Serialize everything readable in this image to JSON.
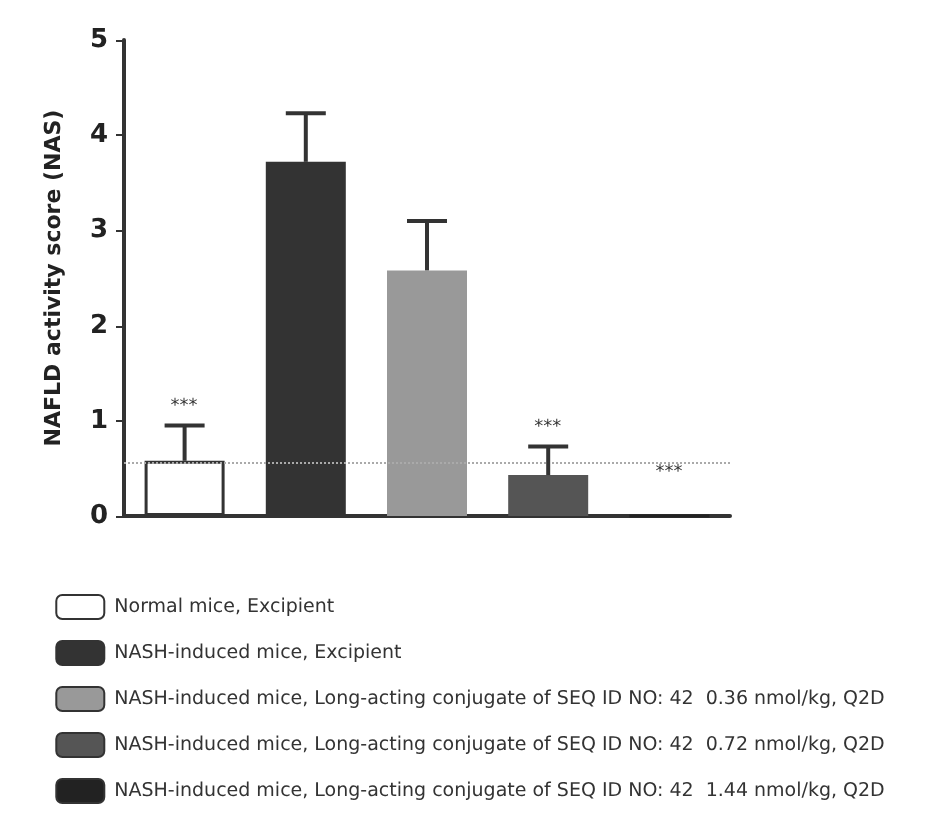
{
  "chart_data": {
    "type": "bar",
    "ylabel": "NAFLD activity score (NAS)",
    "categories": [
      null,
      null,
      null,
      null,
      null
    ],
    "series": [
      {
        "name": "Normal mice, Excipient",
        "color": "#ffffff",
        "values": [
          0.58,
          null,
          null,
          null,
          null
        ],
        "errors": [
          [
            0.58,
            0.95
          ],
          null,
          null,
          null,
          null
        ]
      },
      {
        "name": "NASH-induced mice, Excipient",
        "color": "#333333",
        "values": [
          null,
          3.72,
          null,
          null,
          null
        ],
        "errors": [
          null,
          [
            3.72,
            4.23
          ],
          null,
          null,
          null
        ]
      },
      {
        "name": "NASH-induced mice, Long-acting conjugate of SEQ ID NO: 42  0.36 nmol/kg, Q2D",
        "color": "#999999",
        "values": [
          null,
          null,
          2.58,
          null,
          null
        ],
        "errors": [
          null,
          null,
          [
            2.58,
            3.1
          ],
          null,
          null
        ]
      },
      {
        "name": "NASH-induced mice, Long-acting conjugate of SEQ ID NO: 42  0.72 nmol/kg, Q2D",
        "color": "#555555",
        "values": [
          null,
          null,
          null,
          0.43,
          null
        ],
        "errors": [
          null,
          null,
          null,
          [
            0.43,
            0.73
          ],
          null
        ]
      },
      {
        "name": "NASH-induced mice, Long-acting conjugate of SEQ ID NO: 42  1.44 nmol/kg, Q2D",
        "color": "#222222",
        "values": [
          null,
          null,
          null,
          null,
          0
        ],
        "errors": [
          null,
          null,
          null,
          null,
          null
        ]
      }
    ],
    "ylim": [
      0,
      5
    ],
    "yticks": [
      0,
      1,
      2,
      3,
      4,
      5
    ],
    "grid": false,
    "legend": "bottom",
    "tick_labels": "y",
    "ref_lines": [
      {
        "axis": "y",
        "value": 0.57,
        "color": "#aaaaaa",
        "line_style": "dotted"
      }
    ],
    "annotations": [
      "***",
      "***",
      "***"
    ]
  }
}
